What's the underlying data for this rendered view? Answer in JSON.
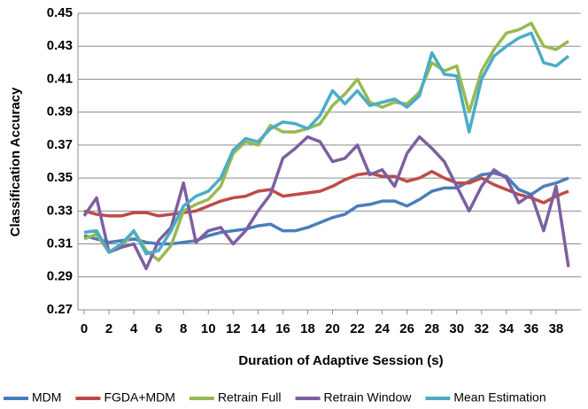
{
  "chart_data": {
    "type": "line",
    "x_label": "Duration of Adaptive Session (s)",
    "y_label": "Classification Accuracy",
    "x": [
      0,
      1,
      2,
      3,
      4,
      5,
      6,
      7,
      8,
      9,
      10,
      11,
      12,
      13,
      14,
      15,
      16,
      17,
      18,
      19,
      20,
      21,
      22,
      23,
      24,
      25,
      26,
      27,
      28,
      29,
      30,
      31,
      32,
      33,
      34,
      35,
      36,
      37,
      38,
      39
    ],
    "series": [
      {
        "name": "MDM",
        "color": "#4a7ebb",
        "values": [
          0.315,
          0.313,
          0.311,
          0.312,
          0.313,
          0.311,
          0.31,
          0.31,
          0.311,
          0.312,
          0.315,
          0.317,
          0.318,
          0.319,
          0.321,
          0.322,
          0.318,
          0.318,
          0.32,
          0.323,
          0.326,
          0.328,
          0.333,
          0.334,
          0.336,
          0.336,
          0.333,
          0.337,
          0.342,
          0.344,
          0.344,
          0.348,
          0.352,
          0.353,
          0.351,
          0.343,
          0.34,
          0.345,
          0.347,
          0.35
        ]
      },
      {
        "name": "FGDA+MDM",
        "color": "#be4b48",
        "values": [
          0.33,
          0.328,
          0.327,
          0.327,
          0.329,
          0.329,
          0.327,
          0.328,
          0.329,
          0.33,
          0.333,
          0.336,
          0.338,
          0.339,
          0.342,
          0.343,
          0.339,
          0.34,
          0.341,
          0.342,
          0.345,
          0.349,
          0.352,
          0.353,
          0.351,
          0.351,
          0.348,
          0.35,
          0.354,
          0.35,
          0.347,
          0.347,
          0.35,
          0.346,
          0.343,
          0.34,
          0.338,
          0.335,
          0.339,
          0.342
        ]
      },
      {
        "name": "Retrain Full",
        "color": "#98b954",
        "values": [
          0.313,
          0.316,
          0.305,
          0.308,
          0.318,
          0.306,
          0.3,
          0.309,
          0.33,
          0.334,
          0.337,
          0.345,
          0.365,
          0.372,
          0.37,
          0.382,
          0.378,
          0.378,
          0.38,
          0.383,
          0.394,
          0.401,
          0.41,
          0.396,
          0.393,
          0.396,
          0.395,
          0.402,
          0.42,
          0.415,
          0.418,
          0.39,
          0.415,
          0.428,
          0.438,
          0.44,
          0.444,
          0.43,
          0.428,
          0.433
        ]
      },
      {
        "name": "Retrain Window",
        "color": "#7d5fa0",
        "values": [
          0.327,
          0.338,
          0.305,
          0.308,
          0.31,
          0.295,
          0.312,
          0.32,
          0.347,
          0.311,
          0.318,
          0.32,
          0.31,
          0.318,
          0.33,
          0.34,
          0.362,
          0.368,
          0.375,
          0.372,
          0.36,
          0.362,
          0.37,
          0.352,
          0.355,
          0.345,
          0.365,
          0.375,
          0.368,
          0.36,
          0.345,
          0.33,
          0.345,
          0.355,
          0.35,
          0.335,
          0.34,
          0.318,
          0.345,
          0.296
        ]
      },
      {
        "name": "Mean Estimation",
        "color": "#4bacc6",
        "values": [
          0.317,
          0.318,
          0.305,
          0.31,
          0.318,
          0.304,
          0.306,
          0.318,
          0.333,
          0.339,
          0.342,
          0.35,
          0.367,
          0.374,
          0.372,
          0.38,
          0.384,
          0.383,
          0.38,
          0.388,
          0.403,
          0.395,
          0.403,
          0.394,
          0.396,
          0.398,
          0.393,
          0.4,
          0.426,
          0.413,
          0.412,
          0.378,
          0.41,
          0.424,
          0.43,
          0.435,
          0.438,
          0.42,
          0.418,
          0.424
        ]
      }
    ],
    "xlim": [
      -0.5,
      40
    ],
    "xticks": [
      0,
      2,
      4,
      6,
      8,
      10,
      12,
      14,
      16,
      18,
      20,
      22,
      24,
      26,
      28,
      30,
      32,
      34,
      36,
      38
    ],
    "ylim": [
      0.27,
      0.45
    ],
    "yticks": [
      0.27,
      0.29,
      0.31,
      0.33,
      0.35,
      0.37,
      0.39,
      0.41,
      0.43,
      0.45
    ],
    "grid": true,
    "legend": "bottom"
  }
}
